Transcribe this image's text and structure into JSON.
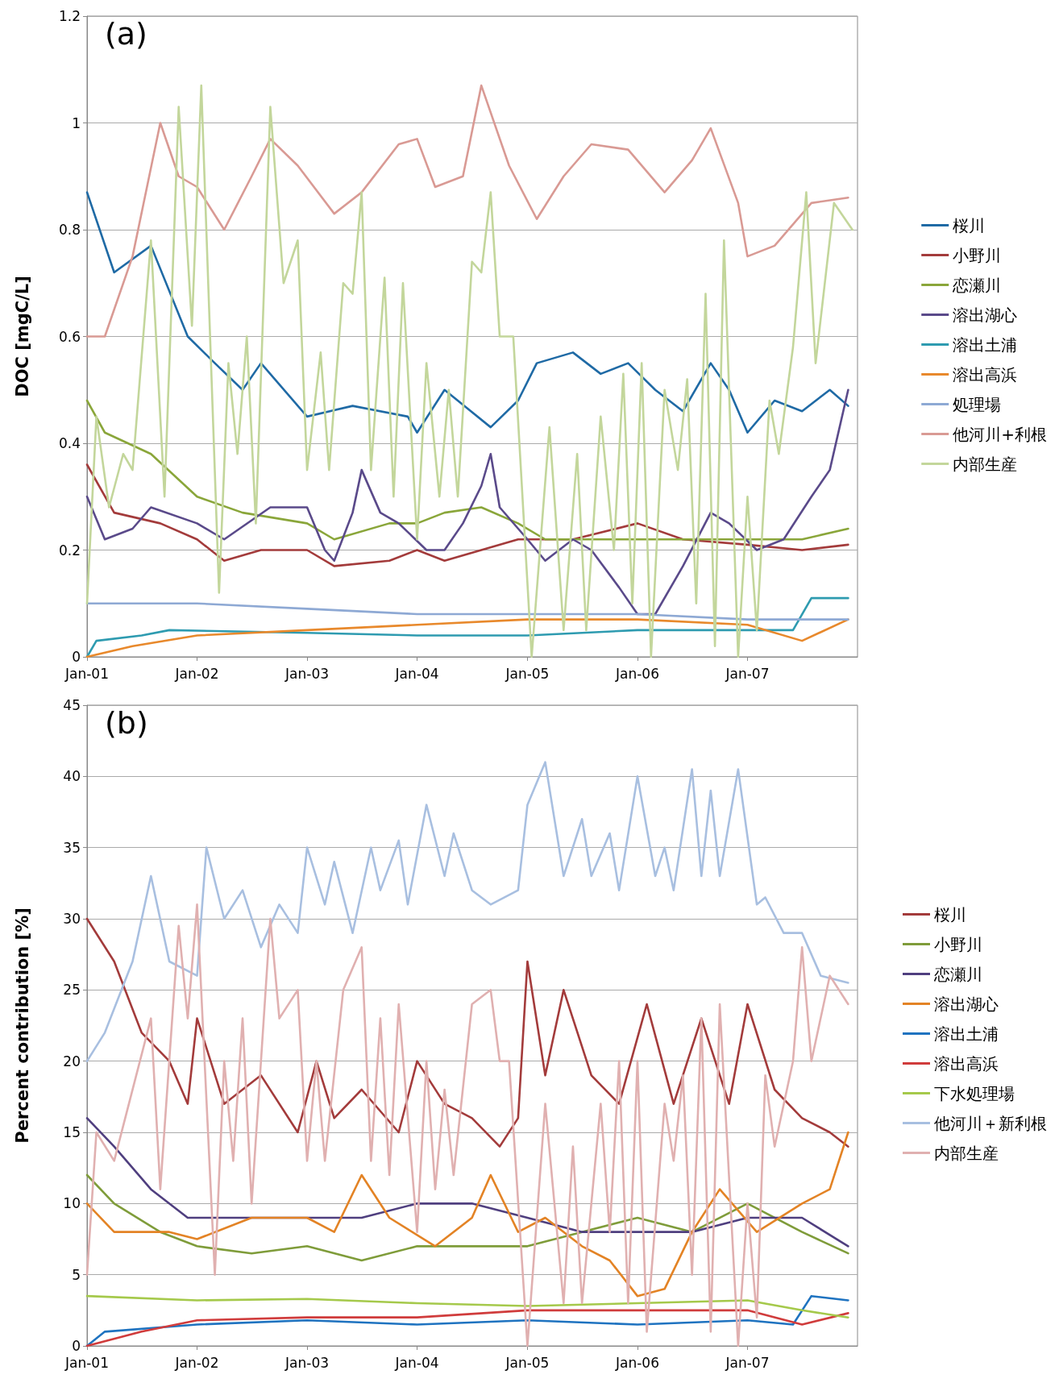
{
  "chart_data": [
    {
      "type": "line",
      "title": "(a)",
      "ylabel": "DOC [mgC/L]",
      "xlim": [
        "2001-01-01",
        "2008-01-01"
      ],
      "xticks": [
        {
          "value": "2001-01-01",
          "label": "Jan-01"
        },
        {
          "value": "2002-01-01",
          "label": "Jan-02"
        },
        {
          "value": "2003-01-01",
          "label": "Jan-03"
        },
        {
          "value": "2004-01-01",
          "label": "Jan-04"
        },
        {
          "value": "2005-01-01",
          "label": "Jan-05"
        },
        {
          "value": "2006-01-01",
          "label": "Jan-06"
        },
        {
          "value": "2007-01-01",
          "label": "Jan-07"
        }
      ],
      "ylim": [
        0,
        1.2
      ],
      "yticks": [
        0,
        0.2,
        0.4,
        0.6,
        0.8,
        1,
        1.2
      ],
      "grid": "y",
      "legend": "right",
      "series": [
        {
          "name": "桜川",
          "color": "#1f6aa5",
          "x": [
            "2001-01",
            "2001-04",
            "2001-08",
            "2001-12",
            "2002-03",
            "2002-06",
            "2002-08",
            "2003-01",
            "2003-06",
            "2003-12",
            "2004-01",
            "2004-04",
            "2004-09",
            "2004-12",
            "2005-02",
            "2005-06",
            "2005-09",
            "2005-12",
            "2006-03",
            "2006-06",
            "2006-09",
            "2006-11",
            "2007-01",
            "2007-04",
            "2007-07",
            "2007-10",
            "2007-12"
          ],
          "values": [
            0.87,
            0.72,
            0.77,
            0.6,
            0.55,
            0.5,
            0.55,
            0.45,
            0.47,
            0.45,
            0.42,
            0.5,
            0.43,
            0.48,
            0.55,
            0.57,
            0.53,
            0.55,
            0.5,
            0.46,
            0.55,
            0.5,
            0.42,
            0.48,
            0.46,
            0.5,
            0.47
          ]
        },
        {
          "name": "小野川",
          "color": "#a33b3b",
          "x": [
            "2001-01",
            "2001-04",
            "2001-09",
            "2002-01",
            "2002-04",
            "2002-08",
            "2003-01",
            "2003-04",
            "2003-10",
            "2004-01",
            "2004-04",
            "2004-08",
            "2004-12",
            "2005-06",
            "2006-01",
            "2006-06",
            "2007-01",
            "2007-07",
            "2007-12"
          ],
          "values": [
            0.36,
            0.27,
            0.25,
            0.22,
            0.18,
            0.2,
            0.2,
            0.17,
            0.18,
            0.2,
            0.18,
            0.2,
            0.22,
            0.22,
            0.25,
            0.22,
            0.21,
            0.2,
            0.21
          ]
        },
        {
          "name": "恋瀬川",
          "color": "#8aa63a",
          "x": [
            "2001-01",
            "2001-03",
            "2001-08",
            "2002-01",
            "2002-06",
            "2003-01",
            "2003-04",
            "2003-10",
            "2004-01",
            "2004-04",
            "2004-08",
            "2004-12",
            "2005-03",
            "2005-09",
            "2006-01",
            "2006-06",
            "2007-01",
            "2007-07",
            "2007-12"
          ],
          "values": [
            0.48,
            0.42,
            0.38,
            0.3,
            0.27,
            0.25,
            0.22,
            0.25,
            0.25,
            0.27,
            0.28,
            0.25,
            0.22,
            0.22,
            0.22,
            0.22,
            0.22,
            0.22,
            0.24
          ]
        },
        {
          "name": "溶出湖心",
          "color": "#5a4a8a",
          "x": [
            "2001-01",
            "2001-03",
            "2001-06",
            "2001-08",
            "2002-01",
            "2002-04",
            "2002-09",
            "2003-01",
            "2003-03",
            "2003-04",
            "2003-06",
            "2003-07",
            "2003-09",
            "2003-11",
            "2004-02",
            "2004-04",
            "2004-06",
            "2004-08",
            "2004-09",
            "2004-10",
            "2005-01",
            "2005-03",
            "2005-06",
            "2005-08",
            "2005-11",
            "2006-01",
            "2006-03",
            "2006-06",
            "2006-09",
            "2006-11",
            "2007-02",
            "2007-05",
            "2007-08",
            "2007-10",
            "2007-12"
          ],
          "values": [
            0.3,
            0.22,
            0.24,
            0.28,
            0.25,
            0.22,
            0.28,
            0.28,
            0.2,
            0.18,
            0.27,
            0.35,
            0.27,
            0.25,
            0.2,
            0.2,
            0.25,
            0.32,
            0.38,
            0.28,
            0.22,
            0.18,
            0.22,
            0.2,
            0.13,
            0.08,
            0.08,
            0.17,
            0.27,
            0.25,
            0.2,
            0.22,
            0.3,
            0.35,
            0.5
          ]
        },
        {
          "name": "溶出土浦",
          "color": "#2e9bb0",
          "x": [
            "2001-01",
            "2001-02",
            "2001-07",
            "2001-10",
            "2003-01",
            "2004-01",
            "2005-01",
            "2006-01",
            "2007-01",
            "2007-06",
            "2007-08",
            "2007-12"
          ],
          "values": [
            0,
            0.03,
            0.04,
            0.05,
            0.045,
            0.04,
            0.04,
            0.05,
            0.05,
            0.05,
            0.11,
            0.11
          ]
        },
        {
          "name": "溶出高浜",
          "color": "#e8892c",
          "x": [
            "2001-01",
            "2001-06",
            "2002-01",
            "2003-01",
            "2004-01",
            "2005-01",
            "2006-01",
            "2007-01",
            "2007-07",
            "2007-12"
          ],
          "values": [
            0,
            0.02,
            0.04,
            0.05,
            0.06,
            0.07,
            0.07,
            0.06,
            0.03,
            0.07
          ]
        },
        {
          "name": "処理場",
          "color": "#8ea9d4",
          "x": [
            "2001-01",
            "2002-01",
            "2003-01",
            "2004-01",
            "2005-01",
            "2006-01",
            "2007-01",
            "2007-12"
          ],
          "values": [
            0.1,
            0.1,
            0.09,
            0.08,
            0.08,
            0.08,
            0.07,
            0.07
          ]
        },
        {
          "name": "他河川+利根",
          "color": "#d99a94",
          "x": [
            "2001-01",
            "2001-03",
            "2001-06",
            "2001-09",
            "2001-11",
            "2002-01",
            "2002-04",
            "2002-07",
            "2002-09",
            "2002-12",
            "2003-04",
            "2003-07",
            "2003-11",
            "2004-01",
            "2004-03",
            "2004-06",
            "2004-08",
            "2004-11",
            "2005-02",
            "2005-05",
            "2005-08",
            "2005-12",
            "2006-04",
            "2006-07",
            "2006-09",
            "2006-12",
            "2007-01",
            "2007-04",
            "2007-08",
            "2007-12"
          ],
          "values": [
            0.6,
            0.6,
            0.75,
            1,
            0.9,
            0.88,
            0.8,
            0.9,
            0.97,
            0.92,
            0.83,
            0.87,
            0.96,
            0.97,
            0.88,
            0.9,
            1.07,
            0.92,
            0.82,
            0.9,
            0.96,
            0.95,
            0.87,
            0.93,
            0.99,
            0.85,
            0.75,
            0.77,
            0.85,
            0.86
          ]
        },
        {
          "name": "内部生産",
          "color": "#c3d69b",
          "x": [
            "2001-01-01",
            "2001-02-01",
            "2001-03-15",
            "2001-05-01",
            "2001-06-01",
            "2001-08-01",
            "2001-09-15",
            "2001-11-01",
            "2001-12-15",
            "2002-01-15",
            "2002-03-15",
            "2002-04-15",
            "2002-05-15",
            "2002-06-15",
            "2002-07-15",
            "2002-09-01",
            "2002-10-15",
            "2002-12-01",
            "2003-01-01",
            "2003-02-15",
            "2003-03-15",
            "2003-05-01",
            "2003-06-01",
            "2003-07-01",
            "2003-08-01",
            "2003-09-15",
            "2003-10-15",
            "2003-11-15",
            "2004-01-01",
            "2004-02-01",
            "2004-03-15",
            "2004-04-15",
            "2004-05-15",
            "2004-07-01",
            "2004-08-01",
            "2004-09-01",
            "2004-10-01",
            "2004-11-15",
            "2005-01-15",
            "2005-03-15",
            "2005-05-01",
            "2005-06-15",
            "2005-07-15",
            "2005-09-01",
            "2005-10-15",
            "2005-11-15",
            "2005-12-15",
            "2006-01-15",
            "2006-02-15",
            "2006-04-01",
            "2006-05-15",
            "2006-06-15",
            "2006-07-15",
            "2006-08-15",
            "2006-09-15",
            "2006-10-15",
            "2006-12-01",
            "2007-01-01",
            "2007-02-01",
            "2007-03-15",
            "2007-04-15",
            "2007-06-01",
            "2007-07-15",
            "2007-08-15",
            "2007-10-15",
            "2007-12-15"
          ],
          "values": [
            0.1,
            0.45,
            0.28,
            0.38,
            0.35,
            0.78,
            0.3,
            1.03,
            0.62,
            1.07,
            0.12,
            0.55,
            0.38,
            0.6,
            0.25,
            1.03,
            0.7,
            0.78,
            0.35,
            0.57,
            0.35,
            0.7,
            0.68,
            0.87,
            0.35,
            0.71,
            0.3,
            0.7,
            0.22,
            0.55,
            0.3,
            0.5,
            0.3,
            0.74,
            0.72,
            0.87,
            0.6,
            0.6,
            0,
            0.43,
            0.05,
            0.38,
            0.05,
            0.45,
            0.2,
            0.53,
            0.1,
            0.55,
            0,
            0.5,
            0.35,
            0.52,
            0.1,
            0.68,
            0.02,
            0.78,
            0,
            0.3,
            0.05,
            0.48,
            0.38,
            0.58,
            0.87,
            0.55,
            0.85,
            0.8
          ]
        }
      ]
    },
    {
      "type": "line",
      "title": "(b)",
      "ylabel": "Percent contribution [%]",
      "xlim": [
        "2001-01-01",
        "2008-01-01"
      ],
      "xticks": [
        {
          "value": "2001-01-01",
          "label": "Jan-01"
        },
        {
          "value": "2002-01-01",
          "label": "Jan-02"
        },
        {
          "value": "2003-01-01",
          "label": "Jan-03"
        },
        {
          "value": "2004-01-01",
          "label": "Jan-04"
        },
        {
          "value": "2005-01-01",
          "label": "Jan-05"
        },
        {
          "value": "2006-01-01",
          "label": "Jan-06"
        },
        {
          "value": "2007-01-01",
          "label": "Jan-07"
        }
      ],
      "ylim": [
        0,
        45
      ],
      "yticks": [
        0,
        5,
        10,
        15,
        20,
        25,
        30,
        35,
        40,
        45
      ],
      "grid": "y",
      "legend": "right",
      "series": [
        {
          "name": "桜川",
          "color": "#a33b3b",
          "x": [
            "2001-01",
            "2001-04",
            "2001-07",
            "2001-10",
            "2001-12",
            "2002-01",
            "2002-04",
            "2002-08",
            "2002-12",
            "2003-02",
            "2003-04",
            "2003-07",
            "2003-11",
            "2004-01",
            "2004-04",
            "2004-07",
            "2004-10",
            "2004-12",
            "2005-01",
            "2005-03",
            "2005-05",
            "2005-08",
            "2005-11",
            "2006-02",
            "2006-05",
            "2006-08",
            "2006-11",
            "2007-01",
            "2007-04",
            "2007-07",
            "2007-10",
            "2007-12"
          ],
          "values": [
            30,
            27,
            22,
            20,
            17,
            23,
            17,
            19,
            15,
            20,
            16,
            18,
            15,
            20,
            17,
            16,
            14,
            16,
            27,
            19,
            25,
            19,
            17,
            24,
            17,
            23,
            17,
            24,
            18,
            16,
            15,
            14
          ]
        },
        {
          "name": "小野川",
          "color": "#7f9c3a",
          "x": [
            "2001-01",
            "2001-04",
            "2001-09",
            "2002-01",
            "2002-07",
            "2003-01",
            "2003-07",
            "2004-01",
            "2004-07",
            "2005-01",
            "2005-07",
            "2006-01",
            "2006-07",
            "2007-01",
            "2007-07",
            "2007-12"
          ],
          "values": [
            12,
            10,
            8,
            7,
            6.5,
            7,
            6,
            7,
            7,
            7,
            8,
            9,
            8,
            10,
            8,
            6.5
          ]
        },
        {
          "name": "恋瀬川",
          "color": "#4f3f7f",
          "x": [
            "2001-01",
            "2001-04",
            "2001-08",
            "2001-12",
            "2002-07",
            "2003-01",
            "2003-07",
            "2004-01",
            "2004-07",
            "2005-01",
            "2005-07",
            "2006-01",
            "2006-07",
            "2007-01",
            "2007-07",
            "2007-12"
          ],
          "values": [
            16,
            14,
            11,
            9,
            9,
            9,
            9,
            10,
            10,
            9,
            8,
            8,
            8,
            9,
            9,
            7
          ]
        },
        {
          "name": "溶出湖心",
          "color": "#e38325",
          "x": [
            "2001-01",
            "2001-04",
            "2001-10",
            "2002-01",
            "2002-07",
            "2003-01",
            "2003-04",
            "2003-07",
            "2003-10",
            "2004-03",
            "2004-07",
            "2004-09",
            "2004-12",
            "2005-03",
            "2005-07",
            "2005-10",
            "2006-01",
            "2006-04",
            "2006-07",
            "2006-10",
            "2007-02",
            "2007-07",
            "2007-10",
            "2007-12"
          ],
          "values": [
            10,
            8,
            8,
            7.5,
            9,
            9,
            8,
            12,
            9,
            7,
            9,
            12,
            8,
            9,
            7,
            6,
            3.5,
            4,
            8,
            11,
            8,
            10,
            11,
            15
          ]
        },
        {
          "name": "溶出土浦",
          "color": "#1f73c0",
          "x": [
            "2001-01",
            "2001-03",
            "2002-01",
            "2003-01",
            "2004-01",
            "2005-01",
            "2006-01",
            "2007-01",
            "2007-06",
            "2007-08",
            "2007-12"
          ],
          "values": [
            0,
            1,
            1.5,
            1.8,
            1.5,
            1.8,
            1.5,
            1.8,
            1.5,
            3.5,
            3.2
          ]
        },
        {
          "name": "溶出高浜",
          "color": "#d03c3c",
          "x": [
            "2001-01",
            "2001-07",
            "2002-01",
            "2003-01",
            "2004-01",
            "2005-01",
            "2006-01",
            "2007-01",
            "2007-07",
            "2007-12"
          ],
          "values": [
            0,
            1,
            1.8,
            2,
            2,
            2.5,
            2.5,
            2.5,
            1.5,
            2.3
          ]
        },
        {
          "name": "下水処理場",
          "color": "#a5c94b",
          "x": [
            "2001-01",
            "2002-01",
            "2003-01",
            "2004-01",
            "2005-01",
            "2006-01",
            "2007-01",
            "2007-07",
            "2007-12"
          ],
          "values": [
            3.5,
            3.2,
            3.3,
            3,
            2.8,
            3,
            3.2,
            2.5,
            2
          ]
        },
        {
          "name": "他河川＋新利根",
          "color": "#a8bfe0",
          "x": [
            "2001-01",
            "2001-03",
            "2001-06",
            "2001-08",
            "2001-10",
            "2002-01",
            "2002-02",
            "2002-04",
            "2002-06",
            "2002-08",
            "2002-10",
            "2002-12",
            "2003-01",
            "2003-03",
            "2003-04",
            "2003-06",
            "2003-08",
            "2003-09",
            "2003-11",
            "2003-12",
            "2004-02",
            "2004-04",
            "2004-05",
            "2004-07",
            "2004-09",
            "2004-12",
            "2005-01",
            "2005-03",
            "2005-05",
            "2005-07",
            "2005-08",
            "2005-10",
            "2005-11",
            "2006-01",
            "2006-03",
            "2006-04",
            "2006-05",
            "2006-07",
            "2006-08",
            "2006-09",
            "2006-10",
            "2006-12",
            "2007-02",
            "2007-03",
            "2007-05",
            "2007-07",
            "2007-09",
            "2007-12"
          ],
          "values": [
            20,
            22,
            27,
            33,
            27,
            26,
            35,
            30,
            32,
            28,
            31,
            29,
            35,
            31,
            34,
            29,
            35,
            32,
            35.5,
            31,
            38,
            33,
            36,
            32,
            31,
            32,
            38,
            41,
            33,
            37,
            33,
            36,
            32,
            40,
            33,
            35,
            32,
            40.5,
            33,
            39,
            33,
            40.5,
            31,
            31.5,
            29,
            29,
            26,
            25.5
          ]
        },
        {
          "name": "内部生産",
          "color": "#e0b0b0",
          "x": [
            "2001-01",
            "2001-02",
            "2001-04",
            "2001-08",
            "2001-09",
            "2001-11",
            "2001-12",
            "2002-01",
            "2002-03",
            "2002-04",
            "2002-05",
            "2002-06",
            "2002-07",
            "2002-09",
            "2002-10",
            "2002-12",
            "2003-01",
            "2003-02",
            "2003-03",
            "2003-05",
            "2003-07",
            "2003-08",
            "2003-09",
            "2003-10",
            "2003-11",
            "2004-01",
            "2004-02",
            "2004-03",
            "2004-04",
            "2004-05",
            "2004-07",
            "2004-09",
            "2004-10",
            "2004-11",
            "2005-01",
            "2005-03",
            "2005-05",
            "2005-06",
            "2005-07",
            "2005-09",
            "2005-10",
            "2005-11",
            "2005-12",
            "2006-01",
            "2006-02",
            "2006-04",
            "2006-05",
            "2006-06",
            "2006-07",
            "2006-08",
            "2006-09",
            "2006-10",
            "2006-12",
            "2007-01",
            "2007-02",
            "2007-03",
            "2007-04",
            "2007-06",
            "2007-07",
            "2007-08",
            "2007-10",
            "2007-12"
          ],
          "values": [
            5,
            15,
            13,
            23,
            11,
            29.5,
            23,
            31,
            5,
            20,
            13,
            23,
            10,
            30,
            23,
            25,
            13,
            20,
            13,
            25,
            28,
            13,
            23,
            12,
            24,
            8,
            20,
            11,
            18,
            12,
            24,
            25,
            20,
            20,
            0,
            17,
            3,
            14,
            3,
            17,
            8,
            20,
            3,
            20,
            1,
            17,
            13,
            19,
            5,
            23,
            1,
            24,
            0,
            10,
            2,
            19,
            14,
            20,
            28,
            20,
            26,
            24
          ]
        }
      ]
    }
  ]
}
